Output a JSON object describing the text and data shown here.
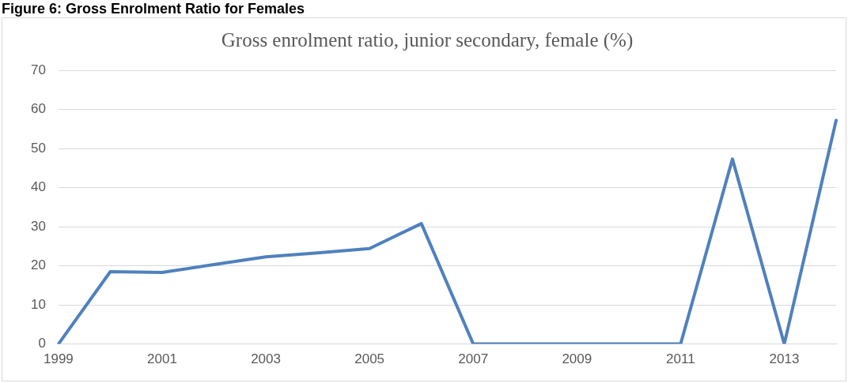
{
  "chart_data": {
    "type": "line",
    "title": "Gross enrolment ratio, junior secondary, female (%)",
    "annotations": [
      "Figure 6: Gross Enrolment Ratio for Females"
    ],
    "categories": [
      "1999",
      null,
      "2001",
      null,
      "2003",
      null,
      "2005",
      null,
      "2007",
      null,
      "2009",
      null,
      "2011",
      null,
      "2013",
      null
    ],
    "series": [
      {
        "color": "#4f81bd",
        "values": [
          0,
          18.5,
          18.3,
          20.3,
          22.3,
          23.3,
          24.4,
          30.8,
          0,
          0,
          0,
          0,
          0,
          47.3,
          0,
          57.2
        ]
      }
    ],
    "ylim": [
      0,
      70
    ],
    "yticks": [
      0,
      10,
      20,
      30,
      40,
      50,
      60,
      70
    ],
    "grid": "y",
    "legend": false,
    "marker": "none",
    "line_style": "solid"
  }
}
